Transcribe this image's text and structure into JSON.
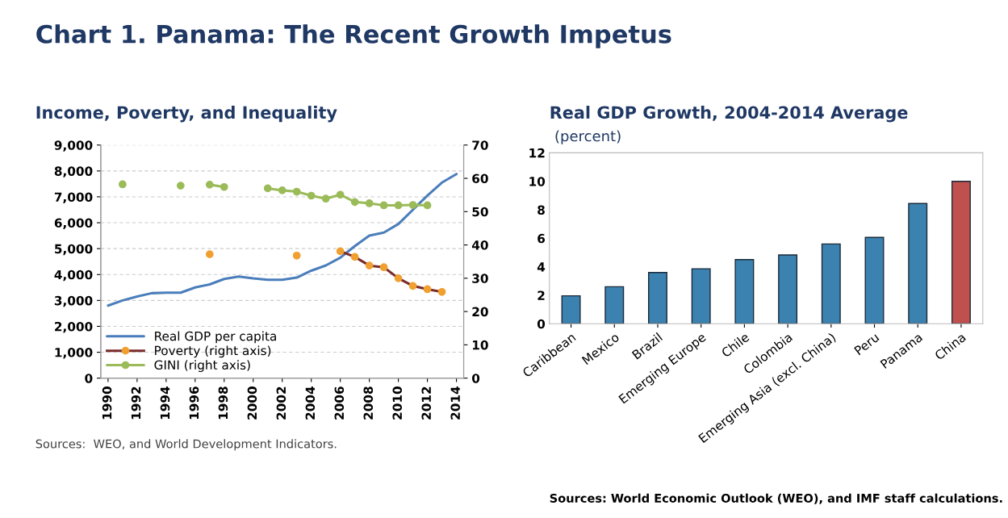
{
  "chart_data": [
    {
      "type": "other",
      "title": "Chart 1. Panama: The Recent Growth Impetus"
    },
    {
      "type": "line",
      "title": "Income, Poverty, and Inequality",
      "x": [
        1990,
        1991,
        1992,
        1993,
        1994,
        1995,
        1996,
        1997,
        1998,
        1999,
        2000,
        2001,
        2002,
        2003,
        2004,
        2005,
        2006,
        2007,
        2008,
        2009,
        2010,
        2011,
        2012,
        2013,
        2014
      ],
      "series": [
        {
          "name": "Real GDP per capita",
          "color": "#4a7ebb",
          "marker": "none",
          "values": [
            2800,
            3000,
            3150,
            3280,
            3300,
            3300,
            3500,
            3620,
            3830,
            3920,
            3850,
            3800,
            3800,
            3880,
            4150,
            4350,
            4650,
            5100,
            5500,
            5620,
            5950,
            6500,
            7050,
            7550,
            7880
          ]
        },
        {
          "name": "Poverty (right axis)",
          "color": "#7b2c2c",
          "colors": [
            "#f0a030",
            "#f0a030",
            "#f0a030",
            "#f0a030",
            "#f0a030",
            "#f0a030",
            "#f0a030",
            "#f0a030",
            "#f0a030",
            "#f0a030",
            "#f0a030",
            "#f0a030",
            "#f0a030",
            "#f0a030",
            "#f0a030",
            "#f0a030",
            "#f0a030",
            "#f0a030",
            "#f0a030",
            "#f0a030",
            "#f0a030",
            "#f0a030",
            "#f0a030",
            "#f0a030",
            "#f0a030"
          ],
          "marker": "circle",
          "axis": "y2",
          "values": [
            null,
            null,
            null,
            null,
            null,
            null,
            null,
            37.2,
            null,
            null,
            null,
            null,
            null,
            36.8,
            null,
            null,
            38.1,
            36.4,
            33.8,
            33.3,
            30.0,
            27.7,
            26.7,
            25.9,
            null
          ]
        },
        {
          "name": "GINI (right axis)",
          "color": "#9bbb59",
          "marker": "circle",
          "axis": "y2",
          "values": [
            null,
            58.2,
            null,
            null,
            null,
            57.8,
            null,
            58.1,
            57.4,
            null,
            null,
            57.0,
            56.4,
            56.0,
            54.8,
            53.9,
            55.1,
            52.9,
            52.5,
            51.9,
            51.9,
            52.0,
            51.9,
            null,
            null
          ]
        }
      ],
      "xlim": [
        1989.5,
        2014.5
      ],
      "xticks": [
        1990,
        1992,
        1994,
        1996,
        1998,
        2000,
        2002,
        2004,
        2006,
        2008,
        2010,
        2012,
        2014
      ],
      "ylim": [
        0,
        9000
      ],
      "yticks": [
        {
          "value": 0,
          "label": "0"
        },
        {
          "value": 1000,
          "label": "1,000"
        },
        {
          "value": 2000,
          "label": "2,000"
        },
        {
          "value": 3000,
          "label": "3,000"
        },
        {
          "value": 4000,
          "label": "4,000"
        },
        {
          "value": 5000,
          "label": "5,000"
        },
        {
          "value": 6000,
          "label": "6,000"
        },
        {
          "value": 7000,
          "label": "7,000"
        },
        {
          "value": 8000,
          "label": "8,000"
        },
        {
          "value": 9000,
          "label": "9,000"
        }
      ],
      "y2lim": [
        0,
        70
      ],
      "y2ticks": [
        0,
        10,
        20,
        30,
        40,
        50,
        60,
        70
      ],
      "grid": "y",
      "legend": "bottom left",
      "annotations": [
        "Sources:  WEO, and World Development Indicators."
      ]
    },
    {
      "type": "bar",
      "title": "Real GDP Growth, 2004-2014 Average",
      "ylabel": "(percent)",
      "categories": [
        "Caribbean",
        "Mexico",
        "Brazil",
        "Emerging Europe",
        "Chile",
        "Colombia",
        "Emerging Asia (excl. China)",
        "Peru",
        "Panama",
        "China"
      ],
      "values": [
        1.96,
        2.6,
        3.6,
        3.86,
        4.5,
        4.83,
        5.6,
        6.06,
        8.44,
        10.0
      ],
      "colors": [
        "#3b82b0",
        "#3b82b0",
        "#3b82b0",
        "#3b82b0",
        "#3b82b0",
        "#3b82b0",
        "#3b82b0",
        "#3b82b0",
        "#3b82b0",
        "#c0504d"
      ],
      "ylim": [
        0,
        12
      ],
      "yticks": [
        0,
        2,
        4,
        6,
        8,
        10,
        12
      ],
      "grid": false,
      "annotations": [
        "Sources: World Economic Outlook (WEO), and IMF staff calculations."
      ]
    }
  ]
}
